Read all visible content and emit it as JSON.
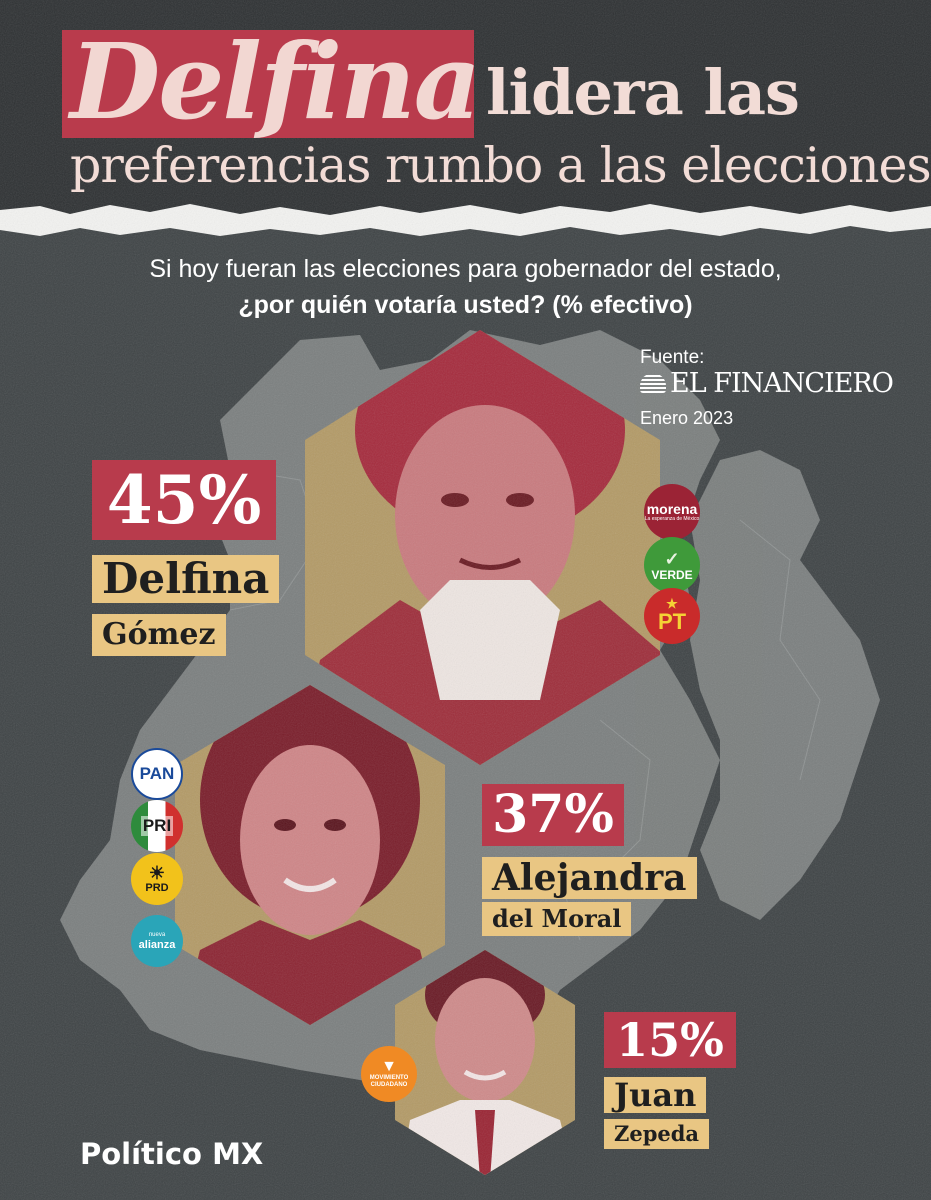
{
  "header": {
    "title_highlight": "Delfina",
    "title_rest": "lidera las",
    "title_line2": "preferencias rumbo a las elecciones"
  },
  "question": {
    "line1": "Si hoy fueran las elecciones para gobernador del estado,",
    "line2": "¿por quién votaría usted? (% efectivo)"
  },
  "source": {
    "label": "Fuente:",
    "name": "EL FINANCIERO",
    "date": "Enero 2023"
  },
  "candidates": [
    {
      "percent_label": "45%",
      "value": 45,
      "first_name": "Delfina",
      "last_name": "Gómez",
      "parties": [
        "morena",
        "VERDE",
        "PT"
      ]
    },
    {
      "percent_label": "37%",
      "value": 37,
      "first_name": "Alejandra",
      "last_name": "del Moral",
      "parties": [
        "PAN",
        "PRI",
        "PRD",
        "alianza"
      ]
    },
    {
      "percent_label": "15%",
      "value": 15,
      "first_name": "Juan",
      "last_name": "Zepeda",
      "parties": [
        "MOVIMIENTO CIUDADANO"
      ]
    }
  ],
  "party_logos": {
    "morena_sub": "La esperanza de México",
    "alianza_top": "nueva"
  },
  "colors": {
    "accent_red": "#b83b4c",
    "accent_gold": "#e9c683",
    "background": "#3e4345",
    "map_fill": "#8a8e8d"
  },
  "footer": {
    "brand": "Político MX"
  }
}
